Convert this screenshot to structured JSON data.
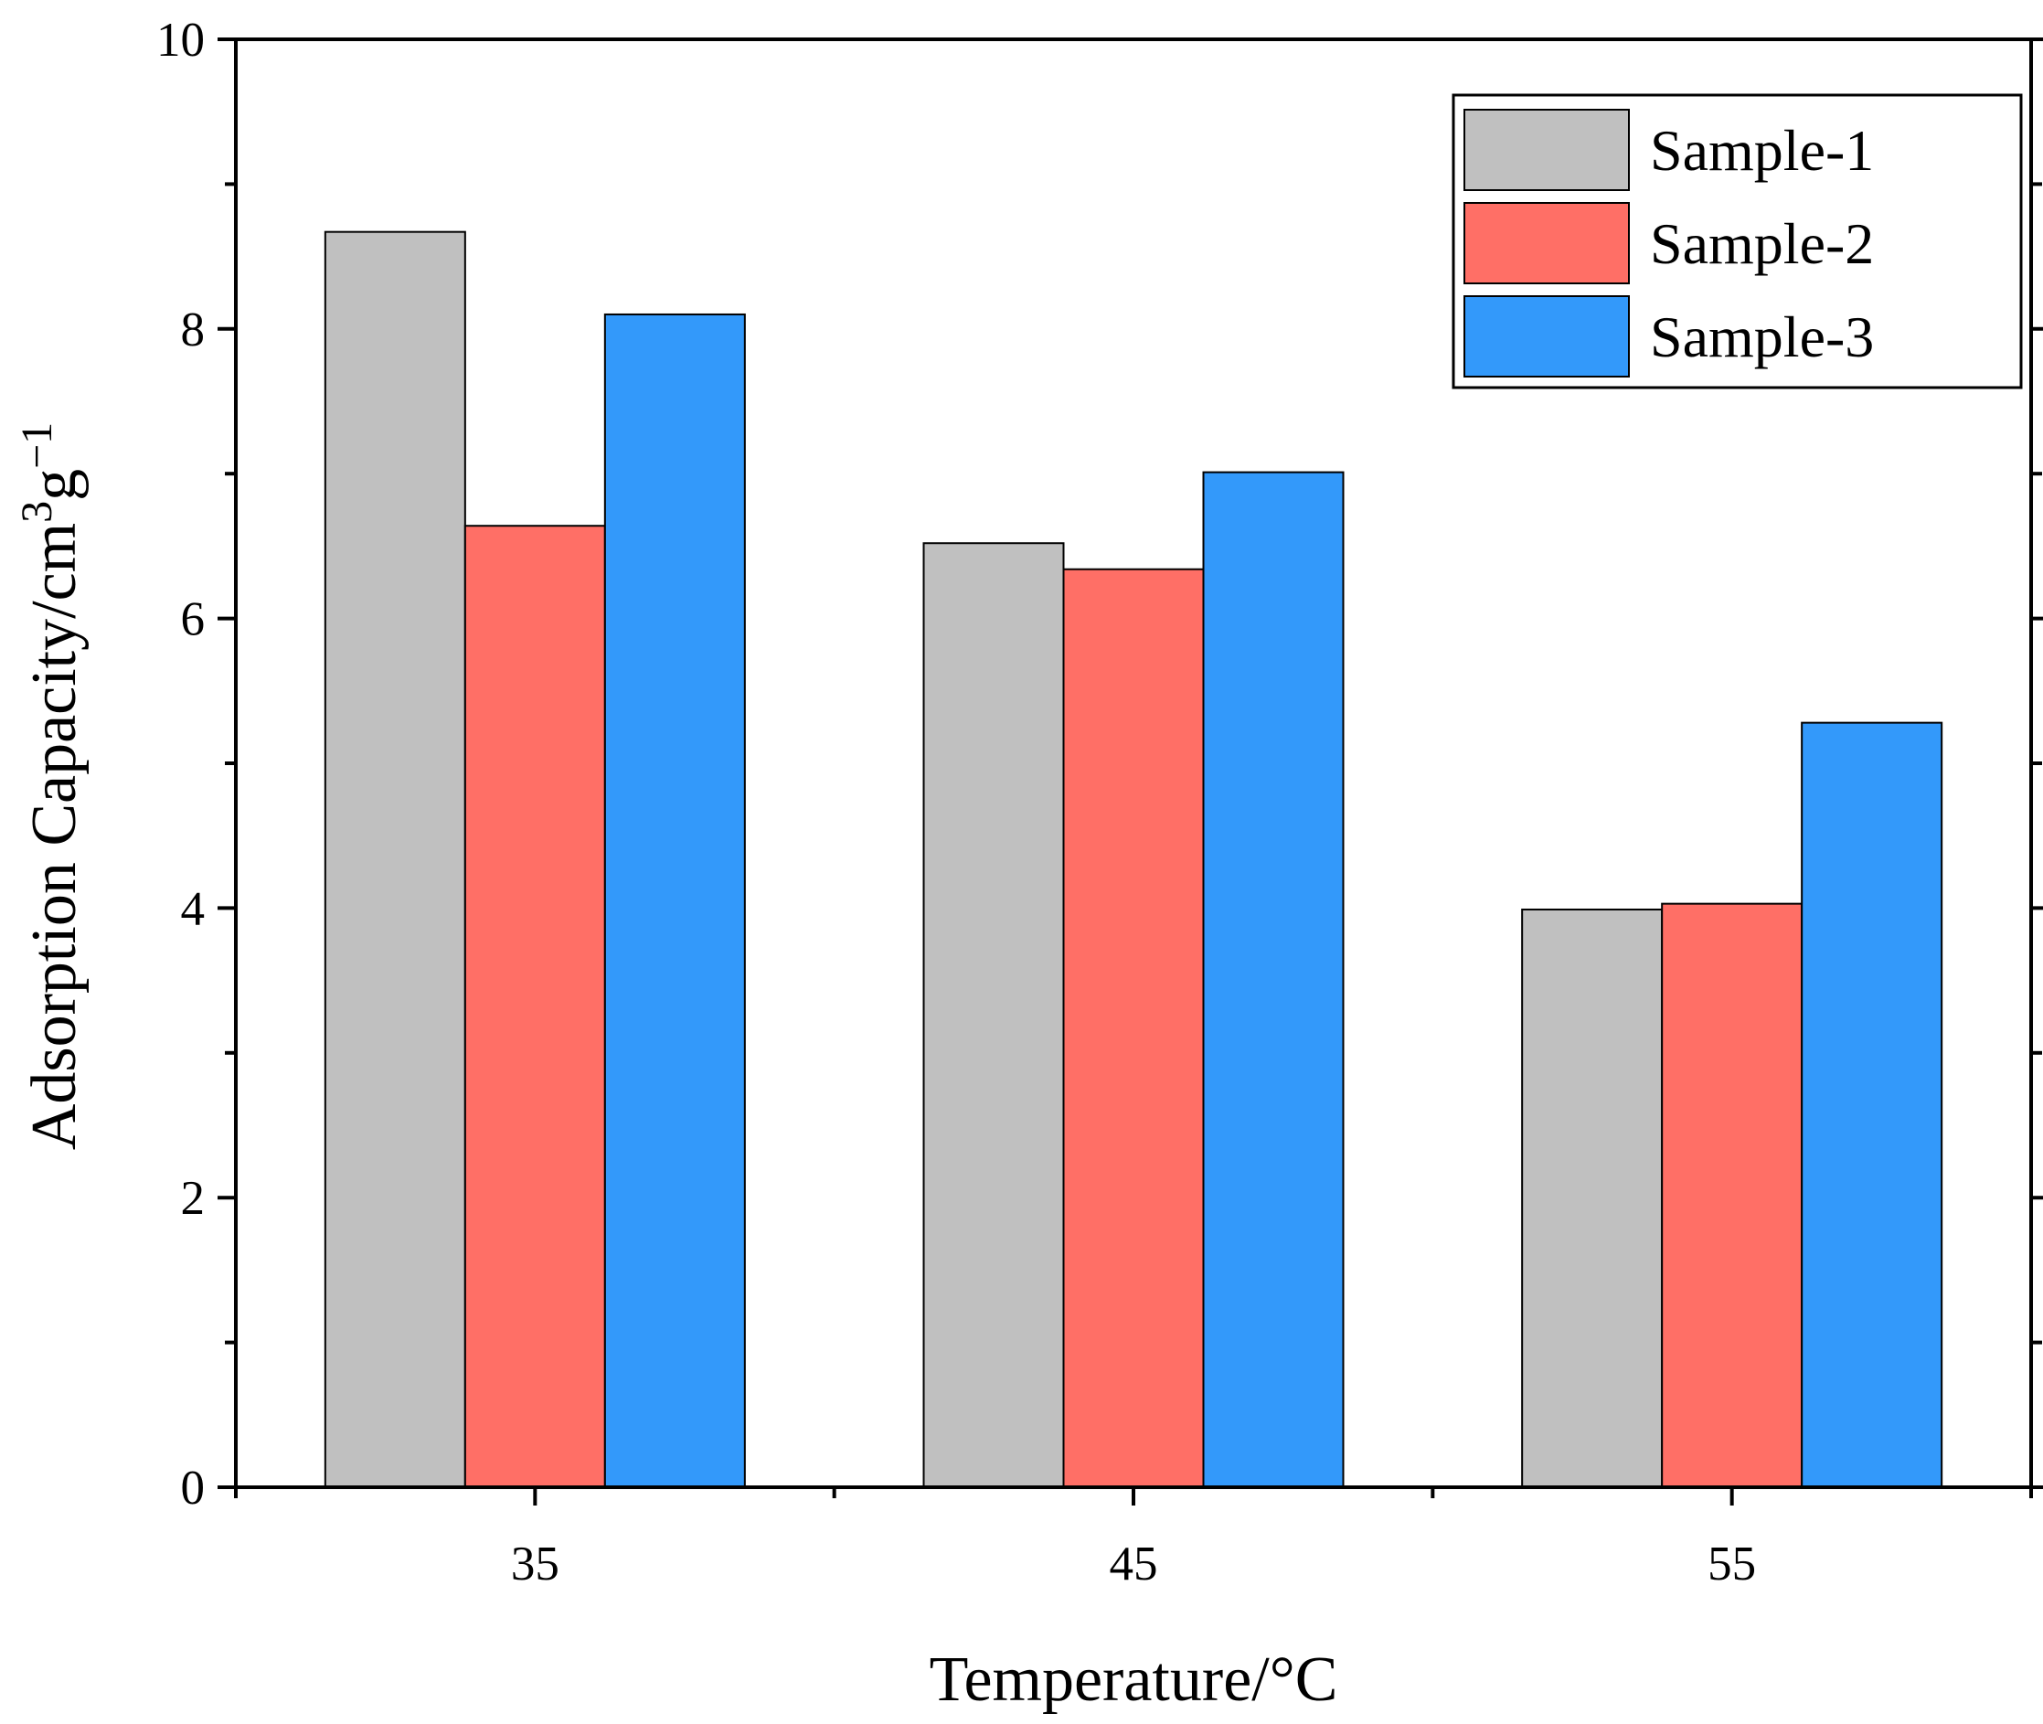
{
  "chart_data": {
    "type": "bar",
    "title": "",
    "xlabel": "Temperature/°C",
    "ylabel": {
      "base": "Adsorption Capacity/cm",
      "sup1": "3",
      "mid": "g",
      "sup2": "−1"
    },
    "categories": [
      "35",
      "45",
      "55"
    ],
    "ylim": [
      0,
      10
    ],
    "yticks": [
      "0",
      "2",
      "4",
      "6",
      "8",
      "10"
    ],
    "series": [
      {
        "name": "Sample-1",
        "color": "#c0c0c0",
        "values": [
          8.67,
          6.52,
          3.99
        ]
      },
      {
        "name": "Sample-2",
        "color": "#ff6f66",
        "values": [
          6.64,
          6.34,
          4.03
        ]
      },
      {
        "name": "Sample-3",
        "color": "#3399fa",
        "values": [
          8.1,
          7.01,
          5.28
        ]
      }
    ],
    "legend_position": "top-right",
    "grid": false
  }
}
